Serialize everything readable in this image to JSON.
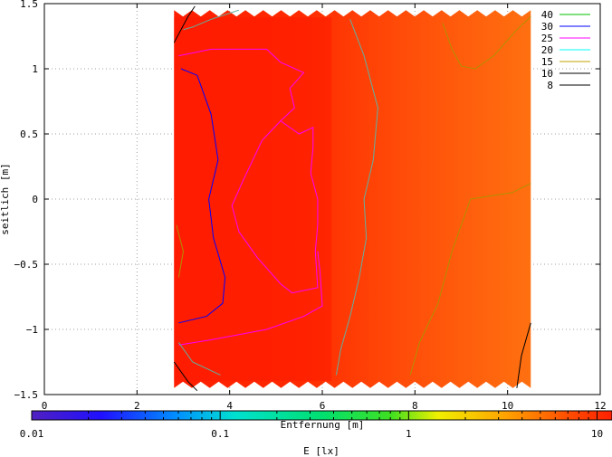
{
  "chart_data": {
    "type": "heatmap",
    "title": "",
    "xlabel": "Entfernung [m]",
    "ylabel": "seitlich [m]",
    "colorbar_label": "E [lx]",
    "xlim": [
      0,
      12
    ],
    "ylim": [
      -1.5,
      1.5
    ],
    "x_ticks": [
      0,
      2,
      4,
      6,
      8,
      10,
      12
    ],
    "y_ticks": [
      -1.5,
      -1,
      -0.5,
      0,
      0.5,
      1,
      1.5
    ],
    "x_tick_labels": [
      "0",
      "2",
      "4",
      "6",
      "8",
      "10",
      "12"
    ],
    "y_tick_labels": [
      "−1.5",
      "−1",
      "−0.5",
      "0",
      "0.5",
      "1",
      "1.5"
    ],
    "colorbar_scale": "log",
    "colorbar_range": [
      0.01,
      12
    ],
    "colorbar_tick_labels": [
      {
        "value": 0.01,
        "label": "0.01"
      },
      {
        "value": 0.1,
        "label": "0.1"
      },
      {
        "value": 1,
        "label": "1"
      },
      {
        "value": 10,
        "label": "10"
      }
    ],
    "grid": true,
    "illuminated_region": {
      "x_start": 2.8,
      "x_end": 10.5,
      "y_min": -1.45,
      "y_max": 1.45
    },
    "contour_levels": [
      {
        "label": "40",
        "color": "#00c000"
      },
      {
        "label": "30",
        "color": "#0000ff"
      },
      {
        "label": "25",
        "color": "#ff00ff"
      },
      {
        "label": "20",
        "color": "#00ffff"
      },
      {
        "label": "15",
        "color": "#c0a000"
      },
      {
        "label": "10",
        "color": "#000000"
      },
      {
        "label": "8",
        "color": "#000000"
      }
    ],
    "legend_position": "top-right",
    "contours": [
      {
        "level": "30",
        "color": "#0000ff",
        "points": [
          [
            2.95,
            1.0
          ],
          [
            3.3,
            0.95
          ],
          [
            3.6,
            0.65
          ],
          [
            3.75,
            0.3
          ],
          [
            3.55,
            0.0
          ],
          [
            3.65,
            -0.3
          ],
          [
            3.9,
            -0.6
          ],
          [
            3.85,
            -0.8
          ],
          [
            3.5,
            -0.9
          ],
          [
            2.9,
            -0.95
          ]
        ]
      },
      {
        "level": "25",
        "color": "#ff00ff",
        "points": [
          [
            2.9,
            1.1
          ],
          [
            3.6,
            1.15
          ],
          [
            4.8,
            1.15
          ],
          [
            5.1,
            1.05
          ],
          [
            5.6,
            0.97
          ],
          [
            5.3,
            0.85
          ],
          [
            5.4,
            0.7
          ],
          [
            5.1,
            0.6
          ],
          [
            4.7,
            0.45
          ],
          [
            4.3,
            0.15
          ],
          [
            4.05,
            -0.05
          ],
          [
            4.2,
            -0.25
          ],
          [
            4.6,
            -0.45
          ],
          [
            5.1,
            -0.65
          ],
          [
            5.35,
            -0.72
          ],
          [
            5.9,
            -0.68
          ],
          [
            5.85,
            -0.4
          ],
          [
            5.9,
            -0.2
          ],
          [
            5.9,
            0.0
          ],
          [
            5.75,
            0.2
          ],
          [
            5.8,
            0.4
          ],
          [
            5.8,
            0.55
          ],
          [
            5.5,
            0.5
          ],
          [
            5.1,
            0.6
          ]
        ]
      },
      {
        "level": "25b",
        "color": "#ff00ff",
        "points": [
          [
            2.9,
            -1.12
          ],
          [
            3.6,
            -1.08
          ],
          [
            4.8,
            -1.0
          ],
          [
            5.6,
            -0.9
          ],
          [
            6.0,
            -0.82
          ],
          [
            5.95,
            -0.55
          ],
          [
            5.9,
            -0.4
          ]
        ]
      },
      {
        "level": "20",
        "color": "#60b0a0",
        "points": [
          [
            6.6,
            1.38
          ],
          [
            6.9,
            1.1
          ],
          [
            7.2,
            0.7
          ],
          [
            7.1,
            0.3
          ],
          [
            6.9,
            0.0
          ],
          [
            6.95,
            -0.3
          ],
          [
            6.8,
            -0.6
          ],
          [
            6.6,
            -0.9
          ],
          [
            6.4,
            -1.15
          ],
          [
            6.3,
            -1.35
          ]
        ]
      },
      {
        "level": "20b",
        "color": "#60b0a0",
        "points": [
          [
            3.0,
            1.3
          ],
          [
            3.2,
            1.32
          ],
          [
            3.6,
            1.38
          ],
          [
            4.2,
            1.45
          ]
        ]
      },
      {
        "level": "20c",
        "color": "#60b0a0",
        "points": [
          [
            2.9,
            -1.1
          ],
          [
            3.2,
            -1.25
          ],
          [
            3.8,
            -1.35
          ]
        ]
      },
      {
        "level": "15",
        "color": "#b09000",
        "points": [
          [
            8.6,
            1.35
          ],
          [
            8.8,
            1.15
          ],
          [
            9.0,
            1.02
          ],
          [
            9.3,
            1.0
          ],
          [
            9.7,
            1.1
          ],
          [
            10.2,
            1.3
          ],
          [
            10.5,
            1.4
          ]
        ]
      },
      {
        "level": "15b",
        "color": "#b09000",
        "points": [
          [
            10.5,
            0.12
          ],
          [
            10.1,
            0.05
          ],
          [
            9.2,
            0.0
          ],
          [
            8.8,
            -0.4
          ],
          [
            8.5,
            -0.8
          ],
          [
            8.1,
            -1.1
          ],
          [
            7.9,
            -1.35
          ]
        ]
      },
      {
        "level": "15c",
        "color": "#b09000",
        "points": [
          [
            2.85,
            -0.2
          ],
          [
            3.0,
            -0.4
          ],
          [
            2.9,
            -0.6
          ]
        ]
      },
      {
        "level": "10",
        "color": "#000000",
        "points": [
          [
            10.5,
            -0.95
          ],
          [
            10.3,
            -1.2
          ],
          [
            10.2,
            -1.45
          ]
        ]
      },
      {
        "level": "10b",
        "color": "#000000",
        "points": [
          [
            2.8,
            1.2
          ],
          [
            3.1,
            1.4
          ],
          [
            3.25,
            1.48
          ]
        ]
      },
      {
        "level": "10c",
        "color": "#000000",
        "points": [
          [
            2.8,
            -1.25
          ],
          [
            3.1,
            -1.4
          ],
          [
            3.3,
            -1.47
          ]
        ]
      }
    ]
  }
}
